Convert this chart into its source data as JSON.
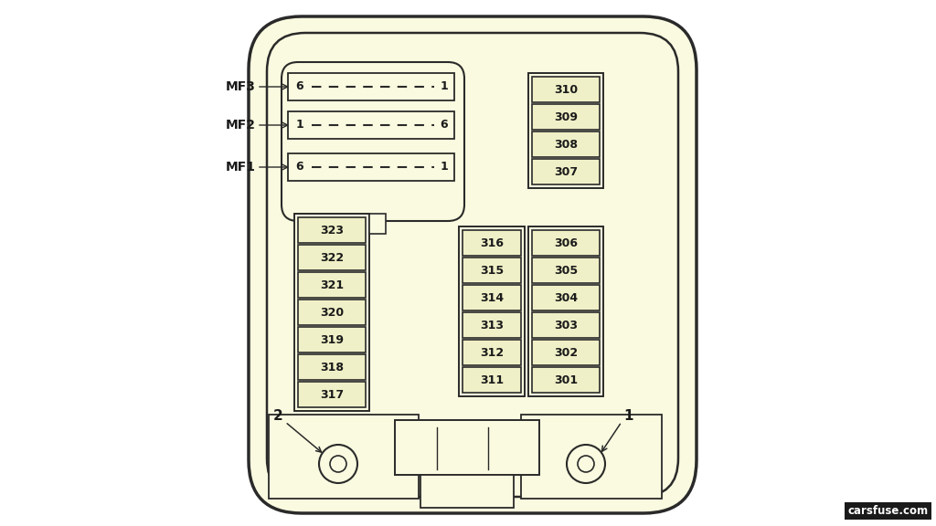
{
  "bg_color": "#fafae0",
  "outer_bg": "#ffffff",
  "line_color": "#2a2a2a",
  "text_color": "#1a1a1a",
  "fuse_bg": "#f0f0c8",
  "watermark": "carsfuse.com",
  "mf_rows": [
    {
      "label": "MF3",
      "left_num": "6",
      "right_num": "1"
    },
    {
      "label": "MF2",
      "left_num": "1",
      "right_num": "6"
    },
    {
      "label": "MF1",
      "left_num": "6",
      "right_num": "1"
    }
  ],
  "col_left": [
    "323",
    "322",
    "321",
    "320",
    "319",
    "318",
    "317"
  ],
  "col_mid": [
    "316",
    "315",
    "314",
    "313",
    "312",
    "311"
  ],
  "col_right_top": [
    "310",
    "309",
    "308",
    "307"
  ],
  "col_right_bottom": [
    "306",
    "305",
    "304",
    "303",
    "302",
    "301"
  ],
  "figw": 10.24,
  "figh": 5.76,
  "dpi": 100
}
